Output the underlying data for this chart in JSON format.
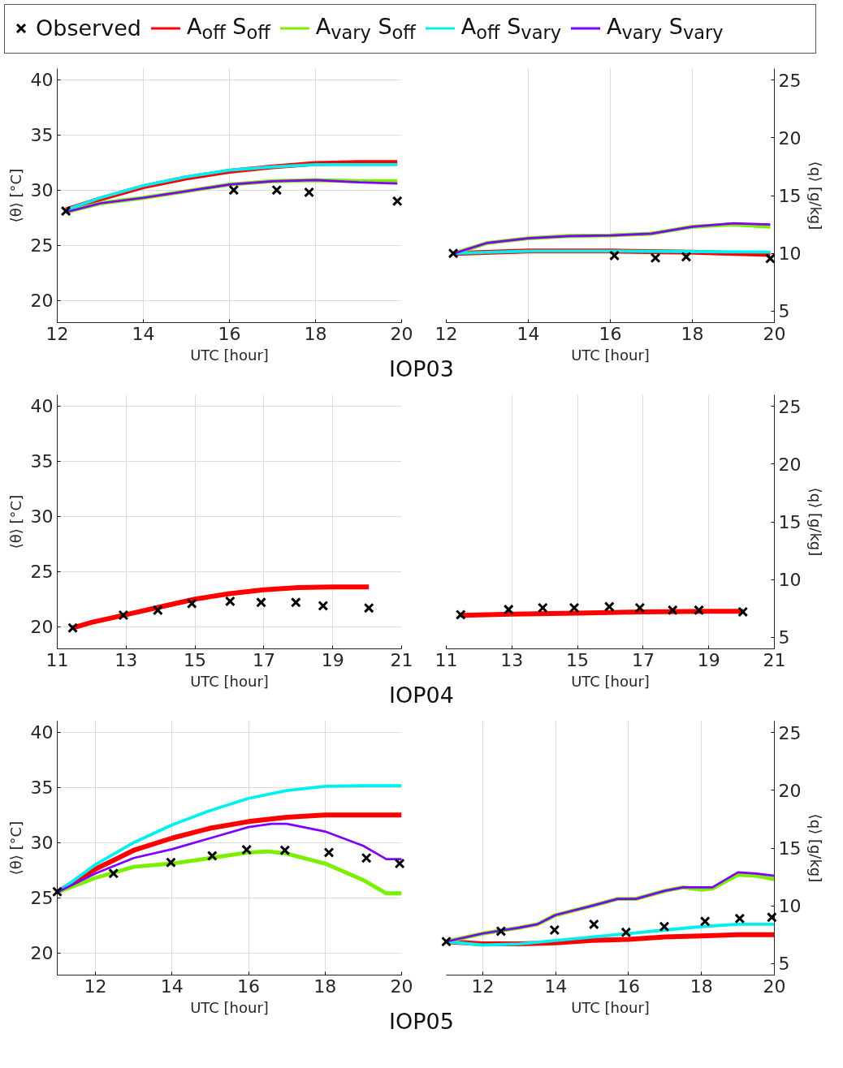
{
  "chart_data": [
    {
      "type": "line",
      "title": "IOP03",
      "xlabel": "UTC [hour]",
      "ylabel": "⟨θ⟩ [°C]",
      "xlim": [
        12,
        20
      ],
      "xticks": [
        12,
        14,
        16,
        18,
        20
      ],
      "ylim": [
        18,
        41
      ],
      "yticks": [
        20,
        25,
        30,
        35,
        40
      ],
      "grid": true,
      "legend": "top",
      "line_style": "solid",
      "series": [
        {
          "name": "Observed",
          "type": "scatter",
          "marker": "cross",
          "color": "#000000",
          "x": [
            12.2,
            16.1,
            17.1,
            17.85,
            19.9
          ],
          "values": [
            28.1,
            30.0,
            30.0,
            29.8,
            29.0
          ]
        },
        {
          "name": "A$_{off}$ S$_{off}$",
          "color": "#ff0000",
          "x": [
            12.2,
            13,
            14,
            15,
            16,
            17,
            18,
            19,
            19.9
          ],
          "values": [
            28.2,
            29.2,
            30.3,
            31.1,
            31.7,
            32.1,
            32.4,
            32.5,
            32.5
          ]
        },
        {
          "name": "A$_{vary}$ S$_{off}$",
          "color": "#7cee00",
          "x": [
            12.2,
            13,
            14,
            15,
            16,
            17,
            18,
            19,
            19.9
          ],
          "values": [
            28.0,
            28.8,
            29.3,
            29.9,
            30.5,
            30.8,
            30.9,
            30.8,
            30.8
          ]
        },
        {
          "name": "A$_{off}$ S$_{vary}$",
          "color": "#00f0f0",
          "x": [
            12.2,
            13,
            14,
            15,
            16,
            17,
            18,
            19,
            19.9
          ],
          "values": [
            28.2,
            29.3,
            30.4,
            31.2,
            31.8,
            32.1,
            32.3,
            32.3,
            32.3
          ]
        },
        {
          "name": "A$_{vary}$ S$_{vary}$",
          "color": "#7f00ff",
          "x": [
            12.2,
            13,
            14,
            15,
            16,
            17,
            18,
            19,
            19.9
          ],
          "values": [
            28.0,
            28.8,
            29.3,
            29.9,
            30.5,
            30.8,
            30.9,
            30.7,
            30.6
          ]
        }
      ]
    },
    {
      "type": "line",
      "xlabel": "UTC [hour]",
      "y2label": "⟨q⟩ [g/kg]",
      "xlim": [
        12,
        20
      ],
      "xticks": [
        12,
        14,
        16,
        18,
        20
      ],
      "y2lim": [
        4,
        26
      ],
      "y2ticks": [
        5,
        10,
        15,
        20,
        25
      ],
      "grid": true,
      "series": [
        {
          "type": "scatter",
          "marker": "cross",
          "axis": "y2",
          "color": "#000000",
          "x": [
            12.17,
            16.1,
            17.1,
            17.85,
            19.9
          ],
          "values": [
            10.0,
            9.8,
            9.6,
            9.7,
            9.55
          ]
        },
        {
          "axis": "y2",
          "color": "#ff0000",
          "x": [
            12.2,
            14,
            16,
            18,
            19.9
          ],
          "values": [
            10.0,
            10.2,
            10.2,
            10.1,
            9.9
          ]
        },
        {
          "axis": "y2",
          "color": "#7cee00",
          "x": [
            12.2,
            13,
            14,
            15,
            16,
            17,
            17.5,
            18,
            19,
            19.9
          ],
          "values": [
            10.0,
            10.9,
            11.3,
            11.5,
            11.55,
            11.7,
            12.0,
            12.3,
            12.5,
            12.3
          ]
        },
        {
          "axis": "y2",
          "color": "#00f0f0",
          "x": [
            12.2,
            14,
            16,
            18,
            19.9
          ],
          "values": [
            10.0,
            10.2,
            10.2,
            10.15,
            10.1
          ]
        },
        {
          "axis": "y2",
          "color": "#7f00ff",
          "x": [
            12.2,
            13,
            14,
            15,
            16,
            17,
            17.5,
            18,
            19,
            19.9
          ],
          "values": [
            10.0,
            10.9,
            11.3,
            11.5,
            11.55,
            11.7,
            12.0,
            12.3,
            12.6,
            12.5
          ]
        }
      ]
    },
    {
      "type": "line",
      "title": "IOP04",
      "xlabel": "UTC [hour]",
      "ylabel": "⟨θ⟩ [°C]",
      "xlim": [
        11,
        21
      ],
      "xticks": [
        11,
        13,
        15,
        17,
        19,
        21
      ],
      "ylim": [
        18,
        41
      ],
      "yticks": [
        20,
        25,
        30,
        35,
        40
      ],
      "grid": true,
      "series": [
        {
          "type": "scatter",
          "marker": "cross",
          "color": "#000000",
          "x": [
            11.45,
            12.92,
            13.92,
            14.91,
            16.02,
            16.92,
            17.93,
            18.72,
            20.05
          ],
          "values": [
            19.9,
            21.05,
            21.5,
            22.1,
            22.3,
            22.2,
            22.2,
            21.9,
            21.7
          ]
        },
        {
          "color": "#ff0000",
          "x": [
            11.45,
            12,
            13,
            14,
            15,
            16,
            17,
            18,
            19,
            20.05
          ],
          "values": [
            19.9,
            20.4,
            21.1,
            21.8,
            22.5,
            23.0,
            23.35,
            23.55,
            23.6,
            23.6
          ]
        }
      ]
    },
    {
      "type": "line",
      "xlabel": "UTC [hour]",
      "y2label": "⟨q⟩ [g/kg]",
      "xlim": [
        11,
        21
      ],
      "xticks": [
        11,
        13,
        15,
        17,
        19,
        21
      ],
      "y2lim": [
        4,
        26
      ],
      "y2ticks": [
        5,
        10,
        15,
        20,
        25
      ],
      "grid": true,
      "series": [
        {
          "type": "scatter",
          "marker": "cross",
          "axis": "y2",
          "color": "#000000",
          "x": [
            11.44,
            12.9,
            13.94,
            14.9,
            15.97,
            16.9,
            17.9,
            18.7,
            20.04
          ],
          "values": [
            6.96,
            7.4,
            7.55,
            7.55,
            7.65,
            7.55,
            7.35,
            7.35,
            7.2
          ]
        },
        {
          "axis": "y2",
          "color": "#ff0000",
          "x": [
            11.44,
            13,
            15,
            17,
            19,
            20.04
          ],
          "values": [
            6.9,
            7.0,
            7.1,
            7.2,
            7.25,
            7.25
          ]
        }
      ]
    },
    {
      "type": "line",
      "title": "IOP05",
      "xlabel": "UTC [hour]",
      "ylabel": "⟨θ⟩ [°C]",
      "xlim": [
        11,
        20
      ],
      "xticks": [
        12,
        14,
        16,
        18,
        20
      ],
      "ylim": [
        18,
        41
      ],
      "yticks": [
        20,
        25,
        30,
        35,
        40
      ],
      "grid": true,
      "series": [
        {
          "type": "scatter",
          "marker": "cross",
          "color": "#000000",
          "x": [
            11.0,
            12.47,
            13.97,
            15.05,
            15.95,
            16.95,
            18.1,
            19.08,
            19.95
          ],
          "values": [
            25.55,
            27.2,
            28.2,
            28.8,
            29.35,
            29.3,
            29.1,
            28.6,
            28.1
          ]
        },
        {
          "color": "#ff0000",
          "x": [
            11,
            12,
            13,
            14,
            15,
            16,
            17,
            18,
            19,
            20
          ],
          "values": [
            25.5,
            27.6,
            29.3,
            30.4,
            31.3,
            31.9,
            32.3,
            32.5,
            32.5,
            32.5
          ]
        },
        {
          "color": "#7cee00",
          "x": [
            11,
            12,
            13,
            14,
            15,
            16,
            16.5,
            17,
            18,
            19,
            19.6,
            20
          ],
          "values": [
            25.5,
            26.8,
            27.8,
            28.1,
            28.6,
            29.1,
            29.2,
            29.0,
            28.1,
            26.6,
            25.4,
            25.4
          ]
        },
        {
          "color": "#00f0f0",
          "x": [
            11,
            12,
            13,
            14,
            15,
            16,
            17,
            18,
            19,
            20
          ],
          "values": [
            25.5,
            28.0,
            30.0,
            31.6,
            32.9,
            34.0,
            34.7,
            35.1,
            35.15,
            35.15
          ]
        },
        {
          "color": "#7f00ff",
          "x": [
            11,
            12,
            13,
            14,
            15,
            16,
            16.6,
            17,
            18,
            19,
            19.6,
            20
          ],
          "values": [
            25.5,
            27.2,
            28.6,
            29.4,
            30.4,
            31.4,
            31.7,
            31.7,
            31.0,
            29.7,
            28.5,
            28.5
          ]
        }
      ]
    },
    {
      "type": "line",
      "xlabel": "UTC [hour]",
      "y2label": "⟨q⟩ [g/kg]",
      "xlim": [
        11,
        20
      ],
      "xticks": [
        12,
        14,
        16,
        18,
        20
      ],
      "y2lim": [
        4,
        26
      ],
      "y2ticks": [
        5,
        10,
        15,
        20,
        25
      ],
      "grid": true,
      "series": [
        {
          "type": "scatter",
          "marker": "cross",
          "axis": "y2",
          "color": "#000000",
          "x": [
            11.0,
            12.5,
            13.97,
            15.05,
            15.93,
            16.98,
            18.1,
            19.05,
            19.93
          ],
          "values": [
            6.9,
            7.8,
            7.9,
            8.4,
            7.7,
            8.2,
            8.65,
            8.9,
            9.0
          ]
        },
        {
          "axis": "y2",
          "color": "#ff0000",
          "x": [
            11,
            12,
            13,
            14,
            15,
            16,
            17,
            18,
            19,
            20
          ],
          "values": [
            6.9,
            6.7,
            6.7,
            6.8,
            7.0,
            7.1,
            7.3,
            7.4,
            7.5,
            7.5
          ]
        },
        {
          "axis": "y2",
          "color": "#7cee00",
          "x": [
            11,
            12,
            13,
            13.5,
            14,
            15,
            15.7,
            16.2,
            17,
            17.5,
            18,
            18.3,
            19,
            19.5,
            20
          ],
          "values": [
            6.9,
            7.6,
            8.1,
            8.4,
            9.2,
            10.0,
            10.6,
            10.6,
            11.3,
            11.6,
            11.4,
            11.5,
            12.7,
            12.6,
            12.3
          ]
        },
        {
          "axis": "y2",
          "color": "#00f0f0",
          "x": [
            11,
            12,
            13,
            14,
            15,
            16,
            17,
            18,
            19,
            20
          ],
          "values": [
            6.9,
            6.6,
            6.7,
            7.0,
            7.3,
            7.6,
            7.9,
            8.2,
            8.4,
            8.4
          ]
        },
        {
          "axis": "y2",
          "color": "#7f00ff",
          "x": [
            11,
            12,
            13,
            13.5,
            14,
            15,
            15.7,
            16.2,
            17,
            17.5,
            18,
            18.3,
            19,
            19.5,
            20
          ],
          "values": [
            6.9,
            7.6,
            8.1,
            8.4,
            9.2,
            10.0,
            10.6,
            10.6,
            11.3,
            11.6,
            11.6,
            11.6,
            12.9,
            12.8,
            12.6
          ]
        }
      ]
    }
  ]
}
